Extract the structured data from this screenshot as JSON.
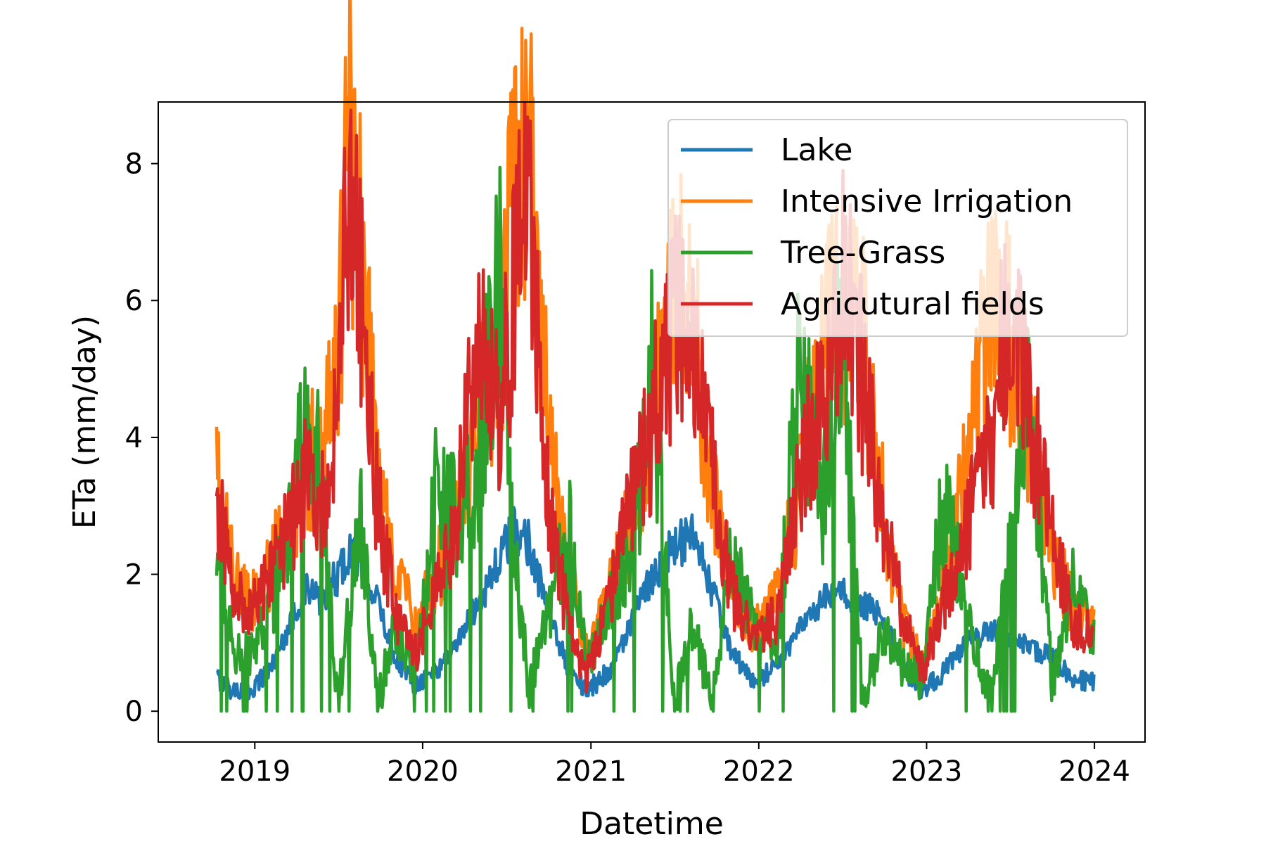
{
  "chart_data": {
    "type": "line",
    "title": "",
    "xlabel": "Datetime",
    "ylabel": "ETa (mm/day)",
    "x_range": [
      "2018-06-05",
      "2024-04-20"
    ],
    "ylim": [
      -0.45,
      8.9
    ],
    "grid": false,
    "legend_position": "top-right",
    "x_ticks": [
      "2019",
      "2020",
      "2021",
      "2022",
      "2023",
      "2024"
    ],
    "y_ticks": [
      "0",
      "2",
      "4",
      "6",
      "8"
    ],
    "date_span": {
      "start": "2018-10-10",
      "end": "2024-01-01"
    },
    "series": [
      {
        "name": "Lake",
        "color": "#1f77b4",
        "points": [
          [
            "2018-10-10",
            0.5
          ],
          [
            "2018-11-15",
            0.3
          ],
          [
            "2018-12-20",
            0.3
          ],
          [
            "2019-02-01",
            0.6
          ],
          [
            "2019-03-15",
            1.2
          ],
          [
            "2019-04-20",
            1.8
          ],
          [
            "2019-05-25",
            1.6
          ],
          [
            "2019-07-01",
            2.0
          ],
          [
            "2019-07-25",
            2.3
          ],
          [
            "2019-08-20",
            2.2
          ],
          [
            "2019-09-25",
            1.6
          ],
          [
            "2019-11-01",
            0.8
          ],
          [
            "2019-12-15",
            0.4
          ],
          [
            "2020-02-01",
            0.6
          ],
          [
            "2020-03-15",
            1.0
          ],
          [
            "2020-05-01",
            1.6
          ],
          [
            "2020-06-15",
            2.2
          ],
          [
            "2020-07-15",
            2.6
          ],
          [
            "2020-08-20",
            2.5
          ],
          [
            "2020-10-01",
            1.4
          ],
          [
            "2020-11-15",
            0.6
          ],
          [
            "2020-12-25",
            0.3
          ],
          [
            "2021-02-10",
            0.6
          ],
          [
            "2021-04-01",
            1.3
          ],
          [
            "2021-05-15",
            2.0
          ],
          [
            "2021-07-01",
            2.4
          ],
          [
            "2021-08-10",
            2.5
          ],
          [
            "2021-09-20",
            1.8
          ],
          [
            "2021-11-01",
            0.9
          ],
          [
            "2021-12-20",
            0.4
          ],
          [
            "2022-02-10",
            0.7
          ],
          [
            "2022-04-01",
            1.2
          ],
          [
            "2022-05-20",
            1.6
          ],
          [
            "2022-07-01",
            1.7
          ],
          [
            "2022-08-15",
            1.6
          ],
          [
            "2022-10-01",
            1.3
          ],
          [
            "2022-11-15",
            0.6
          ],
          [
            "2022-12-25",
            0.3
          ],
          [
            "2023-02-10",
            0.6
          ],
          [
            "2023-04-01",
            1.0
          ],
          [
            "2023-05-20",
            1.2
          ],
          [
            "2023-07-01",
            1.1
          ],
          [
            "2023-08-15",
            0.9
          ],
          [
            "2023-10-01",
            0.8
          ],
          [
            "2023-11-15",
            0.5
          ],
          [
            "2024-01-01",
            0.4
          ]
        ]
      },
      {
        "name": "Intensive Irrigation",
        "color": "#ff7f0e",
        "points": [
          [
            "2018-10-10",
            3.3
          ],
          [
            "2018-11-15",
            2.0
          ],
          [
            "2018-12-20",
            1.5
          ],
          [
            "2019-02-01",
            2.0
          ],
          [
            "2019-03-15",
            2.8
          ],
          [
            "2019-04-20",
            3.6
          ],
          [
            "2019-05-25",
            3.8
          ],
          [
            "2019-07-01",
            5.2
          ],
          [
            "2019-07-25",
            8.5
          ],
          [
            "2019-08-20",
            6.8
          ],
          [
            "2019-09-25",
            3.5
          ],
          [
            "2019-11-01",
            2.2
          ],
          [
            "2019-12-15",
            1.2
          ],
          [
            "2020-02-01",
            2.0
          ],
          [
            "2020-03-15",
            3.0
          ],
          [
            "2020-05-01",
            4.2
          ],
          [
            "2020-06-15",
            5.2
          ],
          [
            "2020-07-15",
            7.3
          ],
          [
            "2020-08-20",
            8.1
          ],
          [
            "2020-10-01",
            4.5
          ],
          [
            "2020-11-15",
            2.0
          ],
          [
            "2020-12-25",
            0.8
          ],
          [
            "2021-02-10",
            1.8
          ],
          [
            "2021-04-01",
            2.8
          ],
          [
            "2021-05-15",
            4.2
          ],
          [
            "2021-07-01",
            6.2
          ],
          [
            "2021-08-10",
            5.9
          ],
          [
            "2021-09-20",
            3.4
          ],
          [
            "2021-11-01",
            1.9
          ],
          [
            "2021-12-20",
            1.2
          ],
          [
            "2022-02-10",
            1.6
          ],
          [
            "2022-04-01",
            3.3
          ],
          [
            "2022-05-20",
            5.3
          ],
          [
            "2022-07-01",
            5.9
          ],
          [
            "2022-08-15",
            5.4
          ],
          [
            "2022-10-01",
            2.8
          ],
          [
            "2022-11-15",
            1.2
          ],
          [
            "2022-12-25",
            0.6
          ],
          [
            "2023-02-10",
            2.0
          ],
          [
            "2023-04-01",
            3.6
          ],
          [
            "2023-05-20",
            6.3
          ],
          [
            "2023-07-01",
            5.4
          ],
          [
            "2023-08-15",
            4.1
          ],
          [
            "2023-10-01",
            2.3
          ],
          [
            "2023-11-15",
            1.5
          ],
          [
            "2024-01-01",
            1.2
          ]
        ]
      },
      {
        "name": "Tree-Grass",
        "color": "#2ca02c",
        "points": [
          [
            "2018-10-10",
            2.4
          ],
          [
            "2018-11-15",
            0.9
          ],
          [
            "2018-12-20",
            0.8
          ],
          [
            "2019-02-01",
            1.5
          ],
          [
            "2019-03-15",
            2.4
          ],
          [
            "2019-04-20",
            4.8
          ],
          [
            "2019-05-25",
            3.3
          ],
          [
            "2019-07-01",
            0.1
          ],
          [
            "2019-07-25",
            1.5
          ],
          [
            "2019-08-20",
            2.8
          ],
          [
            "2019-09-25",
            0.1
          ],
          [
            "2019-11-01",
            1.2
          ],
          [
            "2019-12-15",
            0.6
          ],
          [
            "2020-02-01",
            3.5
          ],
          [
            "2020-03-15",
            2.8
          ],
          [
            "2020-05-01",
            3.6
          ],
          [
            "2020-06-15",
            6.7
          ],
          [
            "2020-07-15",
            2.6
          ],
          [
            "2020-08-20",
            0.3
          ],
          [
            "2020-10-01",
            1.5
          ],
          [
            "2020-11-15",
            2.7
          ],
          [
            "2020-12-25",
            0.7
          ],
          [
            "2021-02-10",
            1.5
          ],
          [
            "2021-04-01",
            2.2
          ],
          [
            "2021-05-15",
            5.0
          ],
          [
            "2021-07-01",
            0.1
          ],
          [
            "2021-08-10",
            1.3
          ],
          [
            "2021-09-20",
            0.1
          ],
          [
            "2021-11-01",
            2.2
          ],
          [
            "2021-12-20",
            1.3
          ],
          [
            "2022-02-10",
            1.0
          ],
          [
            "2022-04-01",
            5.3
          ],
          [
            "2022-05-20",
            3.0
          ],
          [
            "2022-07-01",
            5.6
          ],
          [
            "2022-08-15",
            0.1
          ],
          [
            "2022-10-01",
            1.2
          ],
          [
            "2022-11-15",
            0.6
          ],
          [
            "2022-12-25",
            0.5
          ],
          [
            "2023-02-10",
            3.3
          ],
          [
            "2023-04-01",
            1.4
          ],
          [
            "2023-05-20",
            0.1
          ],
          [
            "2023-07-01",
            2.3
          ],
          [
            "2023-08-15",
            4.5
          ],
          [
            "2023-10-01",
            0.4
          ],
          [
            "2023-11-15",
            1.8
          ],
          [
            "2024-01-01",
            1.0
          ]
        ]
      },
      {
        "name": "Agricutural fields",
        "color": "#d62728",
        "points": [
          [
            "2018-10-10",
            3.3
          ],
          [
            "2018-11-15",
            1.8
          ],
          [
            "2018-12-20",
            1.4
          ],
          [
            "2019-02-01",
            1.9
          ],
          [
            "2019-03-15",
            2.6
          ],
          [
            "2019-04-20",
            3.4
          ],
          [
            "2019-05-25",
            3.0
          ],
          [
            "2019-07-01",
            4.4
          ],
          [
            "2019-07-25",
            8.0
          ],
          [
            "2019-08-20",
            6.1
          ],
          [
            "2019-09-25",
            3.0
          ],
          [
            "2019-11-01",
            1.5
          ],
          [
            "2019-12-15",
            0.8
          ],
          [
            "2020-02-01",
            1.8
          ],
          [
            "2020-03-15",
            2.8
          ],
          [
            "2020-05-01",
            5.4
          ],
          [
            "2020-06-15",
            4.6
          ],
          [
            "2020-07-15",
            6.0
          ],
          [
            "2020-08-20",
            7.5
          ],
          [
            "2020-10-01",
            3.0
          ],
          [
            "2020-11-15",
            1.2
          ],
          [
            "2020-12-25",
            0.5
          ],
          [
            "2021-02-10",
            1.6
          ],
          [
            "2021-04-01",
            3.1
          ],
          [
            "2021-05-15",
            4.2
          ],
          [
            "2021-07-01",
            5.8
          ],
          [
            "2021-08-10",
            5.1
          ],
          [
            "2021-09-20",
            3.6
          ],
          [
            "2021-11-01",
            1.8
          ],
          [
            "2021-12-20",
            1.0
          ],
          [
            "2022-02-10",
            1.4
          ],
          [
            "2022-04-01",
            3.6
          ],
          [
            "2022-05-20",
            4.4
          ],
          [
            "2022-07-01",
            6.3
          ],
          [
            "2022-08-15",
            4.8
          ],
          [
            "2022-10-01",
            2.6
          ],
          [
            "2022-11-15",
            1.3
          ],
          [
            "2022-12-25",
            0.6
          ],
          [
            "2023-02-10",
            1.7
          ],
          [
            "2023-04-01",
            2.8
          ],
          [
            "2023-05-20",
            3.9
          ],
          [
            "2023-07-01",
            6.1
          ],
          [
            "2023-08-15",
            4.3
          ],
          [
            "2023-10-01",
            2.5
          ],
          [
            "2023-11-15",
            1.3
          ],
          [
            "2024-01-01",
            1.1
          ]
        ]
      }
    ]
  }
}
